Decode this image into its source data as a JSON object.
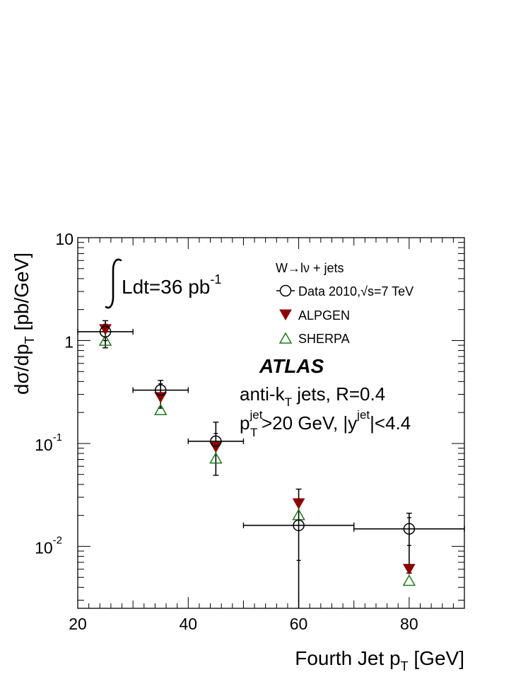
{
  "chart_data": {
    "type": "scatter",
    "xlabel": "Fourth Jet p",
    "xlabel_sub": "T",
    "xlabel_unit": " [GeV]",
    "ylabel": "dσ/dp",
    "ylabel_sub": "T",
    "ylabel_unit": " [pb/GeV]",
    "xlim": [
      20,
      90
    ],
    "ylim": [
      0.0025,
      10
    ],
    "log_y": true,
    "x_ticks": [
      {
        "value": 20,
        "label": "20"
      },
      {
        "value": 40,
        "label": "40"
      },
      {
        "value": 60,
        "label": "60"
      },
      {
        "value": 80,
        "label": "80"
      }
    ],
    "y_ticks": [
      {
        "value": 0.01,
        "base": "10",
        "exp": "-2"
      },
      {
        "value": 0.1,
        "base": "10",
        "exp": "-1"
      },
      {
        "value": 1,
        "base": "1",
        "exp": ""
      },
      {
        "value": 10,
        "base": "10",
        "exp": ""
      }
    ],
    "legend": {
      "title": "W→lν + jets",
      "placement": "top-right",
      "entries": [
        {
          "key": "data",
          "label": "Data 2010,√s=7 TeV"
        },
        {
          "key": "alpgen",
          "label": "ALPGEN"
        },
        {
          "key": "sherpa",
          "label": "SHERPA"
        }
      ]
    },
    "annotations": {
      "lumi_text": "Ldt=36 pb",
      "lumi_exp": "-1",
      "atlas": "ATLAS",
      "jets_prefix": "anti-k",
      "jets_sub": "T",
      "jets_suffix": " jets, R=0.4",
      "cut_p": "p",
      "cut_sup": "jet",
      "cut_sub": "T",
      "cut_mid": ">20 GeV, |y",
      "cut_sup2": "jet",
      "cut_end": "|<4.4"
    },
    "series": [
      {
        "key": "data",
        "x": [
          25,
          35,
          45,
          60,
          80
        ],
        "xlow": [
          20,
          30,
          40,
          50,
          70
        ],
        "xhigh": [
          30,
          40,
          50,
          70,
          90
        ],
        "y": [
          1.22,
          0.33,
          0.105,
          0.016,
          0.0148
        ],
        "ylow": [
          0.85,
          0.22,
          0.049,
          0.0025,
          0.0055
        ],
        "yhigh": [
          1.56,
          0.41,
          0.161,
          0.036,
          0.021
        ],
        "ylow_stat": [
          1.0,
          0.28,
          0.088,
          0.0073,
          0.0102
        ],
        "yhigh_stat": [
          1.44,
          0.38,
          0.125,
          0.029,
          0.019
        ],
        "color": "#000000"
      },
      {
        "key": "alpgen",
        "x": [
          25,
          35,
          45,
          60,
          80
        ],
        "y": [
          1.28,
          0.28,
          0.092,
          0.026,
          0.006
        ],
        "color": "#8b0000"
      },
      {
        "key": "sherpa",
        "x": [
          25,
          35,
          45,
          60,
          80
        ],
        "y": [
          0.99,
          0.21,
          0.071,
          0.02,
          0.0046
        ],
        "color": "#1e7a1e"
      }
    ]
  }
}
